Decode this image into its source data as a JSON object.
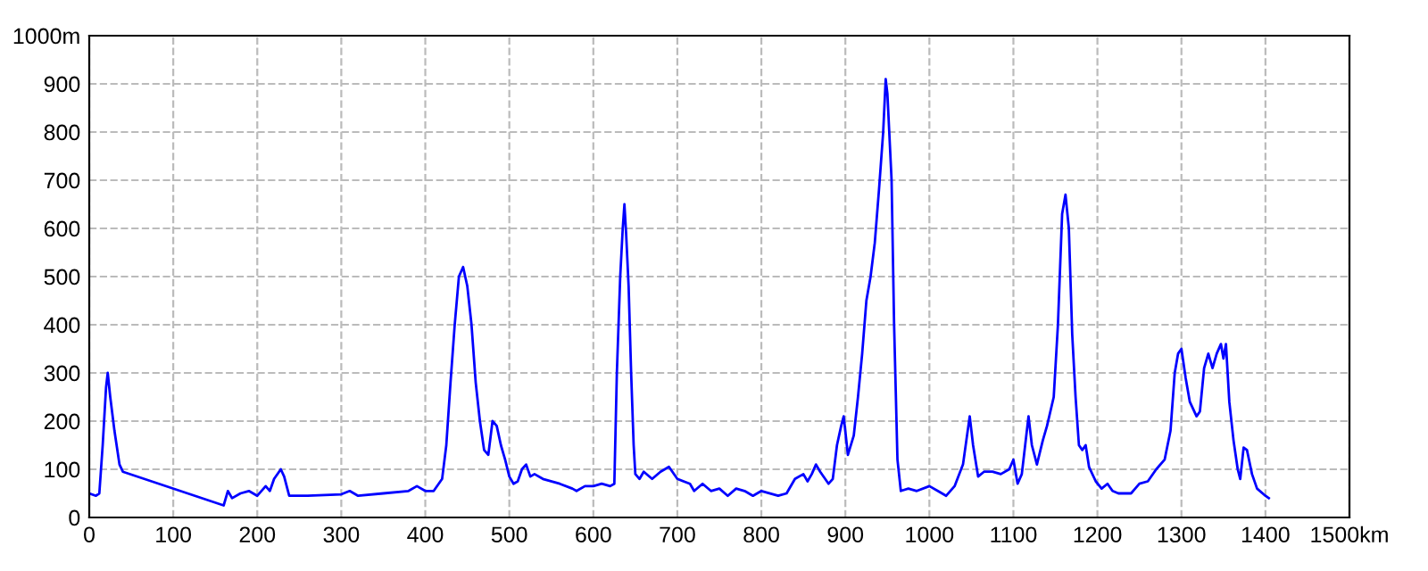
{
  "chart_data": {
    "type": "line",
    "grid": true,
    "marker": "none",
    "line_style": "solid",
    "xlim": [
      0,
      1500
    ],
    "ylim": [
      0,
      1000
    ],
    "xticks": [
      0,
      100,
      200,
      300,
      400,
      500,
      600,
      700,
      800,
      900,
      1000,
      1100,
      1200,
      1300,
      1400,
      {
        "value": 1500,
        "label": "1500km"
      }
    ],
    "yticks": [
      0,
      100,
      200,
      300,
      400,
      500,
      600,
      700,
      800,
      900,
      {
        "value": 1000,
        "label": "1000m"
      }
    ],
    "series": [
      {
        "color": "#0000ff",
        "x": [
          0,
          8,
          12,
          16,
          20,
          22,
          25,
          30,
          36,
          40,
          160,
          165,
          170,
          180,
          190,
          200,
          210,
          215,
          220,
          228,
          232,
          238,
          260,
          300,
          310,
          320,
          350,
          380,
          390,
          400,
          410,
          420,
          425,
          430,
          435,
          440,
          445,
          450,
          455,
          460,
          465,
          470,
          475,
          480,
          485,
          490,
          495,
          500,
          505,
          510,
          515,
          520,
          525,
          530,
          540,
          560,
          575,
          580,
          590,
          600,
          610,
          620,
          625,
          628,
          632,
          635,
          637,
          639,
          642,
          645,
          648,
          650,
          655,
          660,
          670,
          680,
          690,
          700,
          715,
          720,
          730,
          740,
          750,
          760,
          770,
          780,
          790,
          800,
          820,
          830,
          840,
          850,
          855,
          860,
          865,
          870,
          880,
          885,
          890,
          895,
          898,
          903,
          910,
          915,
          920,
          925,
          930,
          935,
          940,
          945,
          948,
          950,
          955,
          958,
          962,
          966,
          975,
          985,
          1000,
          1010,
          1020,
          1030,
          1040,
          1048,
          1052,
          1058,
          1065,
          1075,
          1085,
          1095,
          1100,
          1105,
          1110,
          1118,
          1122,
          1128,
          1135,
          1140,
          1148,
          1153,
          1158,
          1162,
          1166,
          1170,
          1174,
          1178,
          1182,
          1186,
          1190,
          1198,
          1205,
          1212,
          1218,
          1225,
          1240,
          1250,
          1260,
          1270,
          1280,
          1287,
          1292,
          1296,
          1300,
          1305,
          1310,
          1318,
          1322,
          1327,
          1332,
          1337,
          1342,
          1347,
          1350,
          1353,
          1357,
          1362,
          1367,
          1370,
          1374,
          1378,
          1384,
          1390,
          1400,
          1404
        ],
        "values": [
          50,
          45,
          50,
          150,
          270,
          300,
          250,
          180,
          110,
          95,
          25,
          55,
          40,
          50,
          55,
          45,
          65,
          55,
          80,
          100,
          85,
          45,
          45,
          48,
          55,
          45,
          50,
          55,
          65,
          55,
          55,
          80,
          150,
          280,
          400,
          500,
          520,
          480,
          400,
          280,
          200,
          140,
          130,
          200,
          190,
          150,
          120,
          85,
          70,
          75,
          100,
          110,
          85,
          90,
          80,
          70,
          60,
          55,
          65,
          65,
          70,
          65,
          70,
          300,
          500,
          600,
          650,
          590,
          480,
          300,
          150,
          90,
          80,
          95,
          80,
          95,
          105,
          80,
          70,
          55,
          70,
          55,
          60,
          45,
          60,
          55,
          45,
          55,
          45,
          50,
          80,
          90,
          75,
          90,
          110,
          95,
          70,
          80,
          150,
          190,
          210,
          130,
          170,
          250,
          340,
          450,
          500,
          570,
          680,
          800,
          910,
          880,
          700,
          400,
          120,
          55,
          60,
          55,
          65,
          55,
          45,
          65,
          110,
          210,
          150,
          85,
          95,
          95,
          90,
          100,
          120,
          70,
          90,
          210,
          150,
          110,
          160,
          190,
          250,
          400,
          630,
          670,
          600,
          380,
          250,
          150,
          140,
          150,
          105,
          75,
          60,
          70,
          55,
          50,
          50,
          70,
          75,
          100,
          120,
          180,
          300,
          340,
          350,
          290,
          240,
          210,
          220,
          310,
          340,
          310,
          340,
          360,
          330,
          360,
          240,
          160,
          100,
          80,
          145,
          140,
          90,
          60,
          45,
          40
        ]
      }
    ]
  }
}
